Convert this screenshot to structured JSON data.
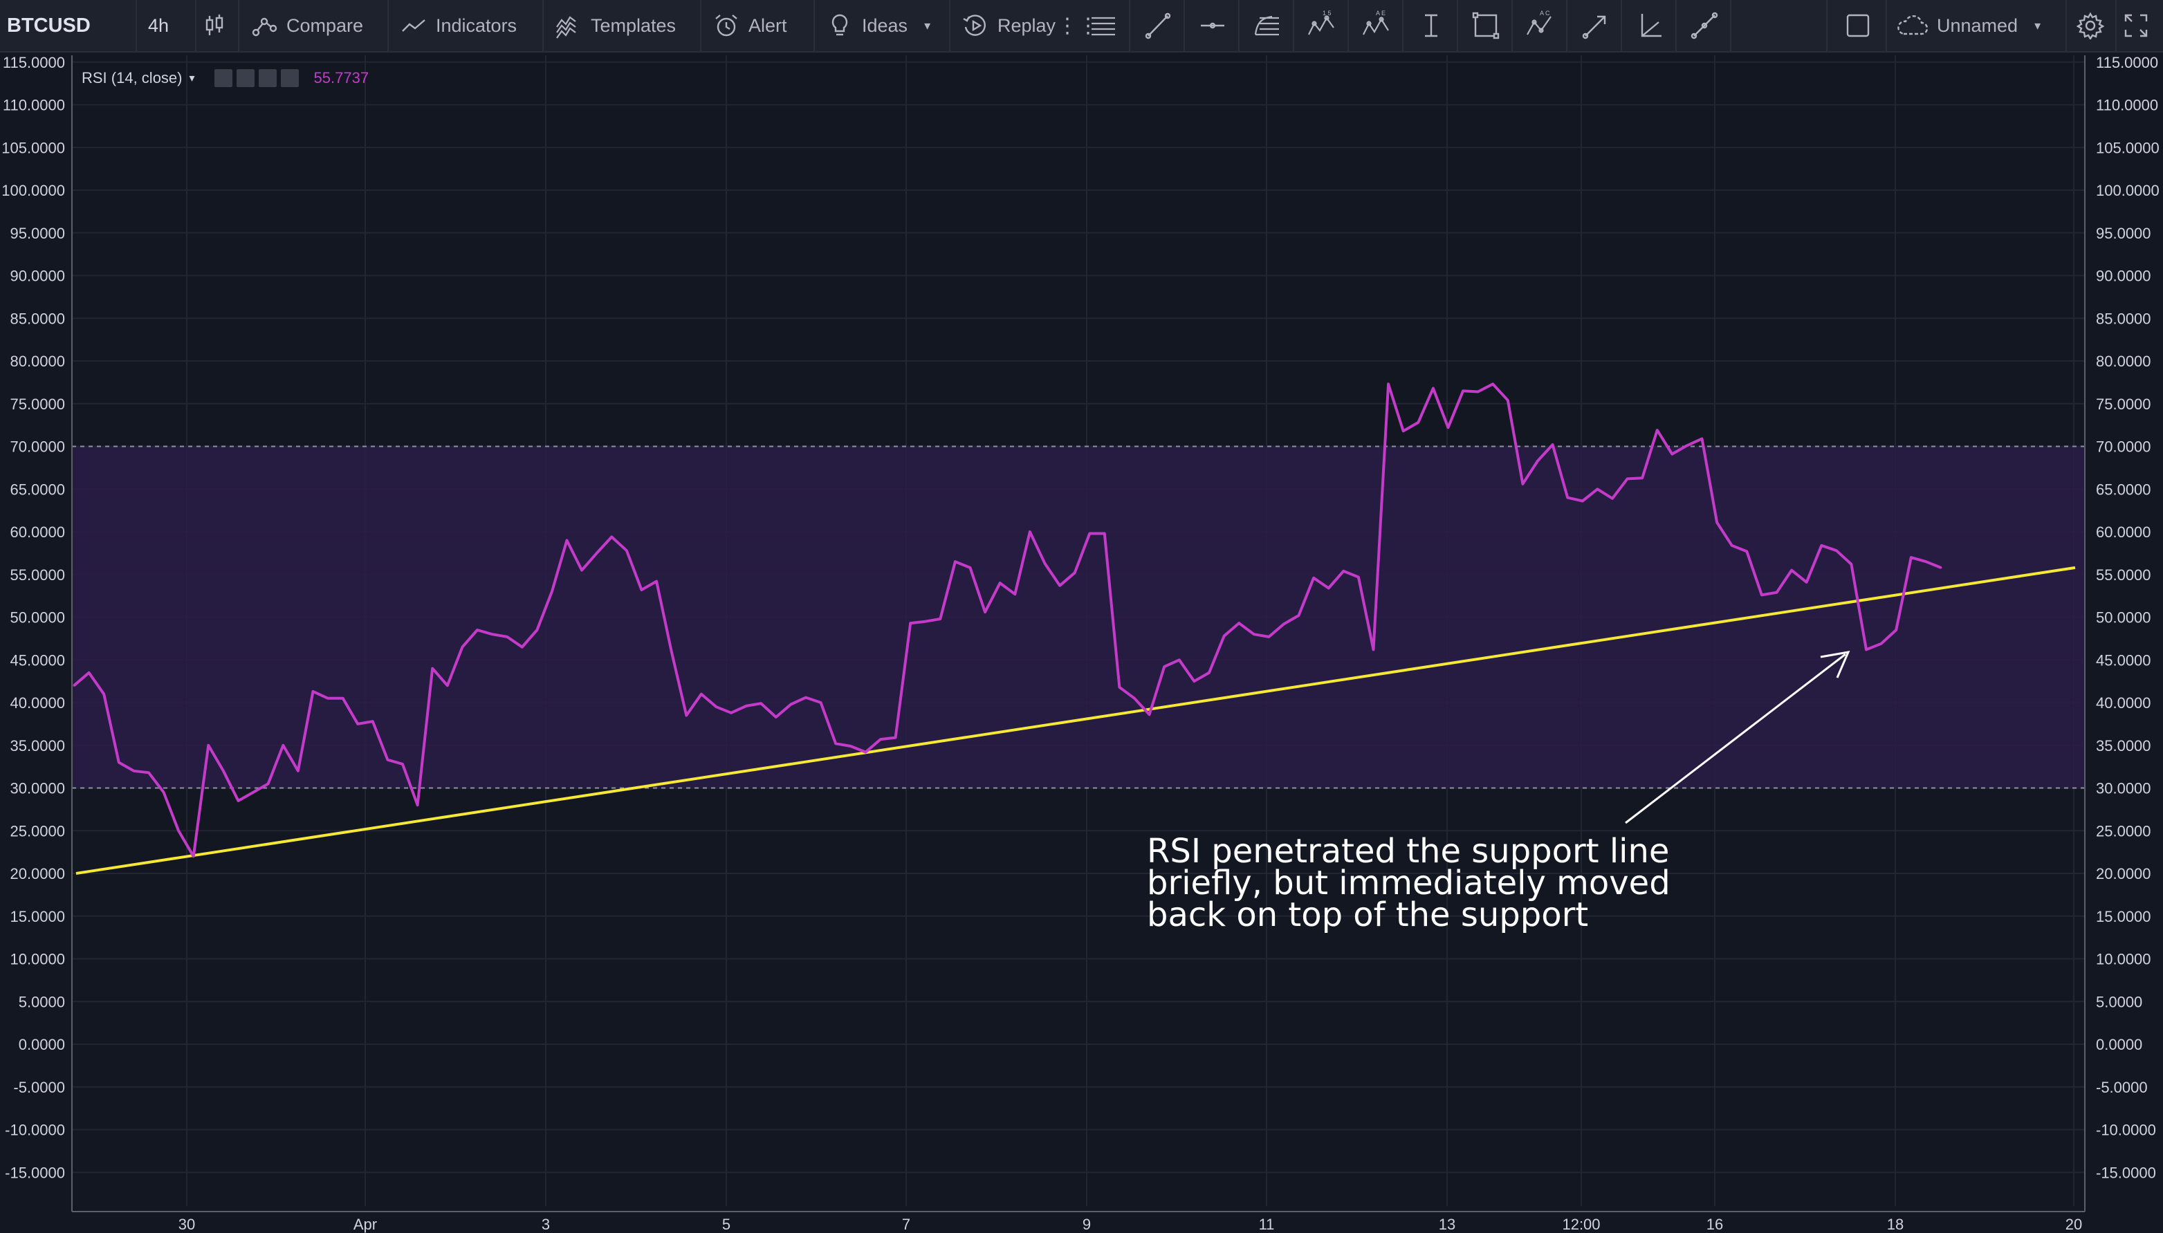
{
  "toolbar": {
    "symbol": "BTCUSD",
    "timeframe": "4h",
    "chart_type_icon": "candles-icon",
    "compare_label": "Compare",
    "indicators_label": "Indicators",
    "templates_label": "Templates",
    "alert_label": "Alert",
    "ideas_label": "Ideas",
    "replay_label": "Replay",
    "layout_name": "Unnamed",
    "drawing_tools": [
      "horizontal-lines-icon",
      "trend-line-icon",
      "horizontal-ray-icon",
      "fib-retracement-icon",
      "pattern-12345-icon",
      "abcde-pattern-icon",
      "date-range-icon",
      "rectangle-icon",
      "abcd-pattern-icon",
      "arrow-icon",
      "angle-icon",
      "brush-icon"
    ]
  },
  "legend": {
    "title": "RSI (14, close)",
    "value": "55.7737"
  },
  "annotation": {
    "lines": [
      "RSI penetrated the support line",
      "briefly, but immediately moved",
      "back on top of the support"
    ]
  },
  "colors": {
    "background": "#131722",
    "toolbar": "#1e222d",
    "rsi_line": "#c43bc9",
    "band_fill": "#2a1c47",
    "support_line": "#f5e837",
    "annotation_arrow": "#ffffff"
  },
  "chart_data": {
    "type": "line",
    "indicator": "RSI (14, close)",
    "y_tick_labels": [
      "115.0000",
      "110.0000",
      "105.0000",
      "100.0000",
      "95.0000",
      "90.0000",
      "85.0000",
      "80.0000",
      "75.0000",
      "70.0000",
      "65.0000",
      "60.0000",
      "55.0000",
      "50.0000",
      "45.0000",
      "40.0000",
      "35.0000",
      "30.0000",
      "25.0000",
      "20.0000",
      "15.0000",
      "10.0000",
      "5.0000",
      "0.0000",
      "-5.0000",
      "-10.0000",
      "-15.0000"
    ],
    "x_tick_labels": [
      "30",
      "Apr",
      "3",
      "5",
      "7",
      "9",
      "11",
      "13",
      "12:00",
      "16",
      "18",
      "20"
    ],
    "ylim": [
      -19,
      116
    ],
    "grid": true,
    "bands": {
      "upper": 70,
      "lower": 30
    },
    "series": [
      {
        "values": [
          42,
          43.5,
          41,
          33,
          32,
          31.8,
          29.5,
          25,
          22,
          35,
          32,
          28.5,
          29.5,
          30.5,
          35,
          32,
          41.3,
          40.5,
          40.5,
          37.5,
          37.8,
          33.3,
          32.8,
          28,
          44,
          42,
          46.5,
          48.5,
          48,
          47.7,
          46.5,
          48.5,
          53,
          59,
          55.5,
          57.5,
          59.4,
          57.8,
          53.2,
          54.2,
          46,
          38.5,
          41,
          39.5,
          38.8,
          39.6,
          39.9,
          38.3,
          39.8,
          40.6,
          40,
          35.2,
          34.9,
          34.2,
          35.7,
          35.9,
          49.3,
          49.5,
          49.8,
          56.5,
          55.8,
          50.6,
          54,
          52.7,
          60,
          56.3,
          53.7,
          55.2,
          59.8,
          59.8,
          41.8,
          40.5,
          38.6,
          44.2,
          45,
          42.5,
          43.5,
          47.8,
          49.3,
          48,
          47.7,
          49.2,
          50.2,
          54.6,
          53.4,
          55.4,
          54.7,
          46.2,
          77.3,
          71.8,
          72.8,
          76.8,
          72.2,
          76.5,
          76.4,
          77.3,
          75.4,
          65.6,
          68.3,
          70.2,
          64,
          63.6,
          65,
          63.9,
          66.2,
          66.3,
          71.9,
          69.1,
          70.1,
          70.9,
          61.1,
          58.4,
          57.7,
          52.6,
          52.9,
          55.5,
          54.1,
          58.4,
          57.8,
          56.2,
          46.2,
          46.9,
          48.5,
          57,
          56.5,
          55.8
        ]
      },
      {
        "name": "",
        "kind": "trendline",
        "values": [
          20,
          55.8
        ]
      }
    ],
    "annotation_text": "RSI penetrated the support line briefly, but immediately moved back on top of the support"
  }
}
